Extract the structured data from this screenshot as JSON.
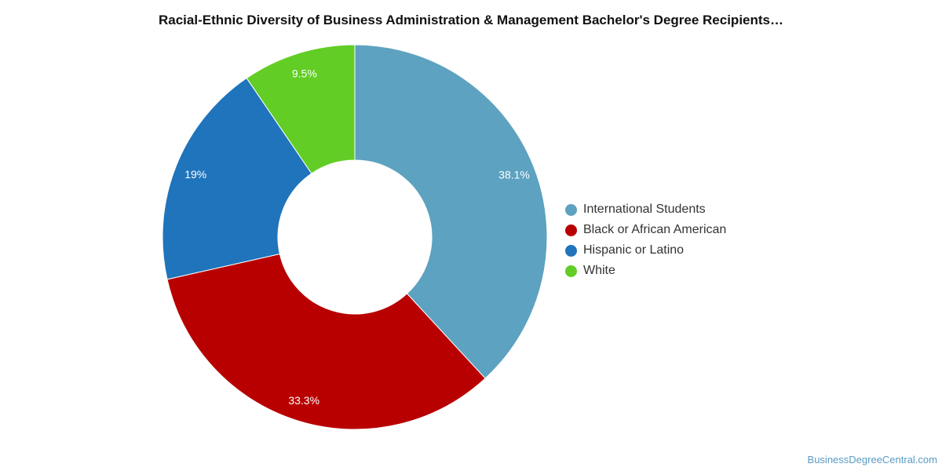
{
  "chart_data": {
    "type": "pie",
    "title": "Racial-Ethnic Diversity of Business Administration & Management Bachelor's Degree Recipients…",
    "slices": [
      {
        "label": "International Students",
        "value": 38.1,
        "display": "38.1%",
        "color": "#5da2c0"
      },
      {
        "label": "Black or African American",
        "value": 33.3,
        "display": "33.3%",
        "color": "#b80000"
      },
      {
        "label": "Hispanic or Latino",
        "value": 19,
        "display": "19%",
        "color": "#1f74bb"
      },
      {
        "label": "White",
        "value": 9.5,
        "display": "9.5%",
        "color": "#62cd25"
      }
    ],
    "legend_position": "right"
  },
  "footer": {
    "source": "BusinessDegreeCentral.com"
  }
}
